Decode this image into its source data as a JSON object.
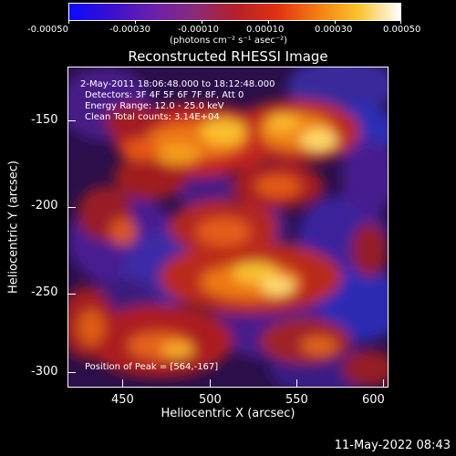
{
  "colorbar": {
    "tick_labels": [
      "-0.00050",
      "-0.00030",
      "-0.00010",
      "0.00010",
      "0.00030",
      "0.00050"
    ],
    "unit_label": "(photons cm⁻² s⁻¹ asec⁻²)",
    "colors": [
      "#0a0aff",
      "#3b0fd0",
      "#6a1fae",
      "#8a2a7d",
      "#b4202a",
      "#e03010",
      "#f57d12",
      "#fbc32e",
      "#ffffff"
    ]
  },
  "title": "Reconstructed RHESSI Image",
  "overlay": {
    "line1": "2-May-2011 18:06:48.000 to 18:12:48.000",
    "line2": "Detectors: 3F 4F 5F 6F 7F 8F, Att 0",
    "line3": "Energy Range: 12.0 - 25.0 keV",
    "line4": "Clean     Total counts: 3.14E+04",
    "peak": "Position of Peak = [564,-167]"
  },
  "axes": {
    "xlabel": "Heliocentric X (arcsec)",
    "ylabel": "Heliocentric Y (arcsec)",
    "x_ticks": [
      "450",
      "500",
      "550",
      "600"
    ],
    "y_ticks": [
      "-150",
      "-200",
      "-250",
      "-300"
    ]
  },
  "footer_timestamp": "11-May-2022 08:43"
}
